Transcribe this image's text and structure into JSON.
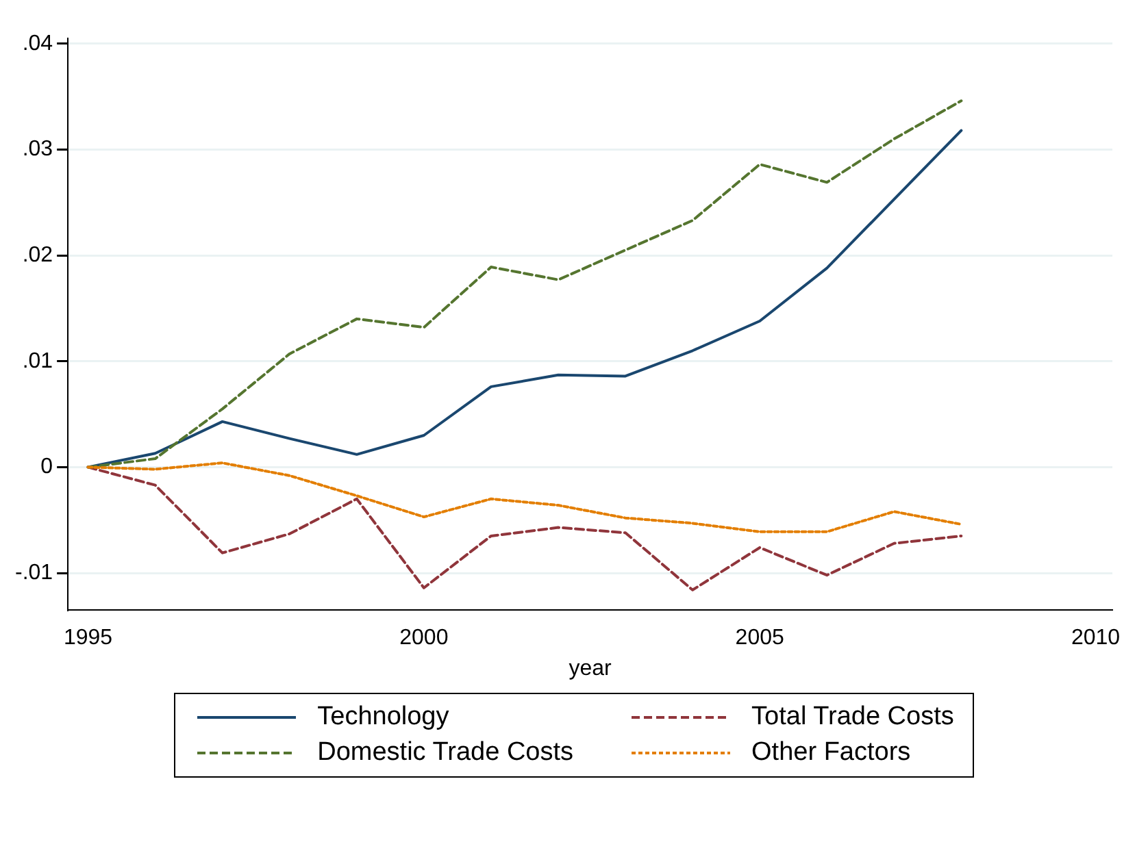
{
  "chart_data": {
    "type": "line",
    "xlabel": "year",
    "x": [
      1995,
      1996,
      1997,
      1998,
      1999,
      2000,
      2001,
      2002,
      2003,
      2004,
      2005,
      2006,
      2007,
      2008
    ],
    "series": [
      {
        "name": "Technology",
        "color": "#1a476f",
        "line_style": "solid",
        "values": [
          0,
          0.0013,
          0.0043,
          0.0027,
          0.0012,
          0.003,
          0.0076,
          0.0087,
          0.0086,
          0.011,
          0.0138,
          0.0188,
          0.0253,
          0.0318
        ]
      },
      {
        "name": "Total Trade Costs",
        "color": "#90353b",
        "line_style": "dashed",
        "values": [
          0,
          -0.0017,
          -0.0081,
          -0.0063,
          -0.003,
          -0.0114,
          -0.0065,
          -0.0057,
          -0.0062,
          -0.0116,
          -0.0076,
          -0.0102,
          -0.0072,
          -0.0065
        ]
      },
      {
        "name": "Domestic Trade Costs",
        "color": "#55752f",
        "line_style": "dashed",
        "values": [
          0,
          0.0008,
          0.0055,
          0.0107,
          0.014,
          0.0132,
          0.0189,
          0.0177,
          0.0205,
          0.0233,
          0.0286,
          0.0269,
          0.031,
          0.0346
        ]
      },
      {
        "name": "Other Factors",
        "color": "#e37e00",
        "line_style": "dotted",
        "values": [
          0,
          -0.0002,
          0.0004,
          -0.0008,
          -0.0027,
          -0.0047,
          -0.003,
          -0.0036,
          -0.0048,
          -0.0053,
          -0.0061,
          -0.0061,
          -0.0042,
          -0.0054
        ]
      }
    ],
    "xlim": [
      1994.7,
      2010.25
    ],
    "xticks": [
      1995,
      2000,
      2005,
      2010
    ],
    "ylim": [
      -0.0135,
      0.0405
    ],
    "yticks": [
      {
        "value": -0.01,
        "label": "-.01"
      },
      {
        "value": 0,
        "label": "0"
      },
      {
        "value": 0.01,
        "label": ".01"
      },
      {
        "value": 0.02,
        "label": ".02"
      },
      {
        "value": 0.03,
        "label": ".03"
      },
      {
        "value": 0.04,
        "label": ".04"
      }
    ],
    "grid": "y",
    "legend": "bottom",
    "marker": "none"
  }
}
